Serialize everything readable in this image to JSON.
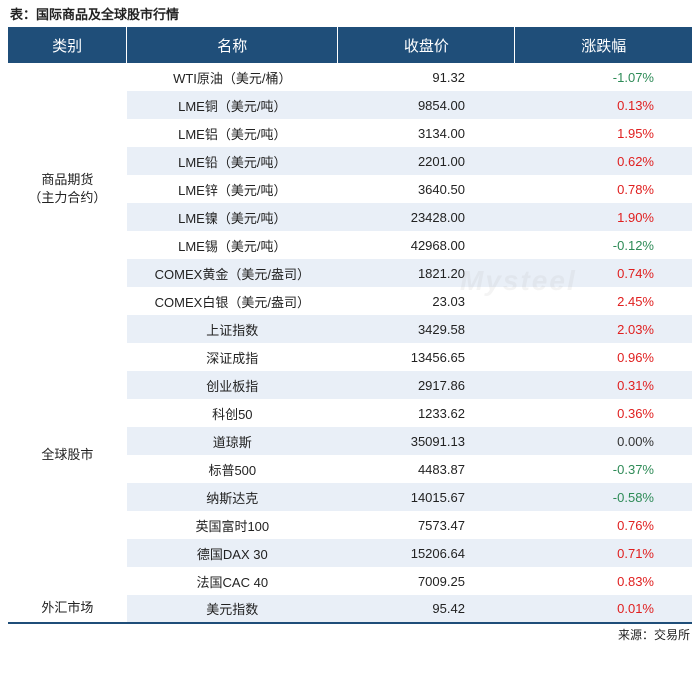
{
  "title": "表：国际商品及全球股市行情",
  "sourceLabel": "来源：交易所",
  "watermark": "Mysteel",
  "colors": {
    "headerBg": "#1f4e79",
    "rowOdd": "#e9eff7",
    "pos": "#e02020",
    "neg": "#2e8b57",
    "zero": "#333333",
    "textDefault": "#222222"
  },
  "layout": {
    "colWidths": {
      "cat": 118,
      "name": 210,
      "price": 176,
      "change": 176
    }
  },
  "header": {
    "cat": "类别",
    "name": "名称",
    "price": "收盘价",
    "change": "涨跌幅"
  },
  "groups": [
    {
      "catLines": [
        "商品期货",
        "（主力合约）"
      ],
      "rows": [
        {
          "name": "WTI原油（美元/桶）",
          "price": "91.32",
          "change": "-1.07%",
          "sign": -1
        },
        {
          "name": "LME铜（美元/吨）",
          "price": "9854.00",
          "change": "0.13%",
          "sign": 1
        },
        {
          "name": "LME铝（美元/吨）",
          "price": "3134.00",
          "change": "1.95%",
          "sign": 1
        },
        {
          "name": "LME铅（美元/吨）",
          "price": "2201.00",
          "change": "0.62%",
          "sign": 1
        },
        {
          "name": "LME锌（美元/吨）",
          "price": "3640.50",
          "change": "0.78%",
          "sign": 1
        },
        {
          "name": "LME镍（美元/吨）",
          "price": "23428.00",
          "change": "1.90%",
          "sign": 1
        },
        {
          "name": "LME锡（美元/吨）",
          "price": "42968.00",
          "change": "-0.12%",
          "sign": -1
        },
        {
          "name": "COMEX黄金（美元/盎司）",
          "price": "1821.20",
          "change": "0.74%",
          "sign": 1
        },
        {
          "name": "COMEX白银（美元/盎司）",
          "price": "23.03",
          "change": "2.45%",
          "sign": 1
        }
      ]
    },
    {
      "catLines": [
        "全球股市"
      ],
      "rows": [
        {
          "name": "上证指数",
          "price": "3429.58",
          "change": "2.03%",
          "sign": 1
        },
        {
          "name": "深证成指",
          "price": "13456.65",
          "change": "0.96%",
          "sign": 1
        },
        {
          "name": "创业板指",
          "price": "2917.86",
          "change": "0.31%",
          "sign": 1
        },
        {
          "name": "科创50",
          "price": "1233.62",
          "change": "0.36%",
          "sign": 1
        },
        {
          "name": "道琼斯",
          "price": "35091.13",
          "change": "0.00%",
          "sign": 0
        },
        {
          "name": "标普500",
          "price": "4483.87",
          "change": "-0.37%",
          "sign": -1
        },
        {
          "name": "纳斯达克",
          "price": "14015.67",
          "change": "-0.58%",
          "sign": -1
        },
        {
          "name": "英国富时100",
          "price": "7573.47",
          "change": "0.76%",
          "sign": 1
        },
        {
          "name": "德国DAX 30",
          "price": "15206.64",
          "change": "0.71%",
          "sign": 1
        },
        {
          "name": "法国CAC 40",
          "price": "7009.25",
          "change": "0.83%",
          "sign": 1
        }
      ]
    },
    {
      "catLines": [
        "外汇市场"
      ],
      "rows": [
        {
          "name": "美元指数",
          "price": "95.42",
          "change": "0.01%",
          "sign": 1
        }
      ]
    }
  ]
}
